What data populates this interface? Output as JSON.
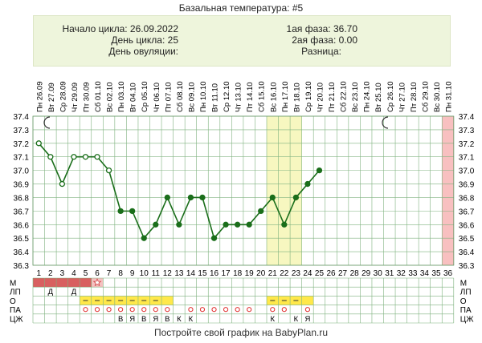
{
  "header": {
    "title": "Базальная температура: #5",
    "cycle_start": "Начало цикла: 26.09.2022",
    "cycle_day": "День цикла: 25",
    "ovulation_day": "День овуляции:",
    "phase1": "1ая фаза: 36.70",
    "phase2": "2ая фаза: 0.00",
    "difference": "Разница:"
  },
  "footer": {
    "text": "Постройте свой график на BabyPlan.ru"
  },
  "colors": {
    "line": "#1a6e1a",
    "grid": "#7fb27f",
    "highlight": "#f7f7c0",
    "end_marker": "#f8c0c0",
    "period_bar": "#d86060",
    "pink_flag": "#f5c0c0",
    "yellow_cell": "#ffe84a"
  },
  "icons": {
    "moon_left": "crescent-moon-icon",
    "moon_right": "crescent-moon-icon",
    "star": "star-icon"
  },
  "chart_data": {
    "type": "line",
    "x": [
      1,
      2,
      3,
      4,
      5,
      6,
      7,
      8,
      9,
      10,
      11,
      12,
      13,
      14,
      15,
      16,
      17,
      18,
      19,
      20,
      21,
      22,
      23,
      24,
      25
    ],
    "y": [
      37.2,
      37.1,
      36.9,
      37.1,
      37.1,
      37.1,
      37.0,
      36.7,
      36.7,
      36.5,
      36.6,
      36.8,
      36.6,
      36.8,
      36.8,
      36.5,
      36.6,
      36.6,
      36.6,
      36.7,
      36.8,
      36.6,
      36.8,
      36.9,
      37.0
    ],
    "hollow_points": [
      1,
      2,
      3,
      4,
      5,
      6,
      7
    ],
    "ylim": [
      36.3,
      37.4
    ],
    "y_ticks": [
      "37.4",
      "37.3",
      "37.2",
      "37.1",
      "37.0",
      "36.9",
      "36.8",
      "36.7",
      "36.6",
      "36.5",
      "36.4",
      "36.3"
    ],
    "x_ticks": [
      "1",
      "2",
      "3",
      "4",
      "5",
      "6",
      "7",
      "8",
      "9",
      "10",
      "11",
      "12",
      "13",
      "14",
      "15",
      "16",
      "17",
      "18",
      "19",
      "20",
      "21",
      "22",
      "23",
      "24",
      "25",
      "26",
      "27",
      "28",
      "29",
      "30",
      "31",
      "32",
      "33",
      "34",
      "35",
      "36"
    ],
    "day_labels": [
      "Пн",
      "Вт",
      "Ср",
      "Чт",
      "Пт",
      "Сб",
      "Вс",
      "Пн",
      "Вт",
      "Ср",
      "Чт",
      "Пт",
      "Сб",
      "Вс",
      "Пн",
      "Вт",
      "Ср",
      "Чт",
      "Пт",
      "Сб",
      "Вс",
      "Пн",
      "Вт",
      "Ср",
      "Чт",
      "Пт",
      "Сб",
      "Вс",
      "Пн",
      "Вт",
      "Ср",
      "Чт",
      "Пт",
      "Сб",
      "Вс",
      "Пн"
    ],
    "date_labels": [
      "26.09",
      "27.09",
      "28.09",
      "29.09",
      "30.09",
      "01.10",
      "02.10",
      "03.10",
      "04.10",
      "05.10",
      "06.10",
      "07.10",
      "08.10",
      "09.10",
      "10.10",
      "11.10",
      "12.10",
      "13.10",
      "14.10",
      "15.10",
      "16.10",
      "17.10",
      "18.10",
      "19.10",
      "20.10",
      "21.10",
      "22.10",
      "23.10",
      "24.10",
      "25.10",
      "26.10",
      "27.10",
      "28.10",
      "29.10",
      "30.10",
      "31.10"
    ],
    "highlight_days": [
      21,
      23
    ],
    "end_day": 36,
    "grid": true,
    "rows": {
      "labels": [
        "М",
        "ЛП",
        "О",
        "ПА",
        "ЦЖ"
      ],
      "period_days": [
        1,
        5
      ],
      "pink_day": 6,
      "star_day": 6,
      "lp": {
        "2": "Д",
        "4": "Д"
      },
      "o_yellow_days": [
        5,
        6,
        7,
        8,
        9,
        10,
        11,
        12,
        21,
        22,
        23,
        24
      ],
      "o_dash_days": [
        5,
        6,
        7,
        8,
        9,
        10,
        11,
        21,
        22,
        23
      ],
      "pa_circle_days": [
        5,
        6,
        7,
        8,
        9,
        10,
        11,
        12,
        14,
        15,
        16,
        17,
        18,
        19,
        21,
        22,
        24
      ],
      "czh": {
        "8": "В",
        "9": "Я",
        "10": "В",
        "11": "Я",
        "12": "В",
        "13": "К",
        "14": "К",
        "21": "К",
        "23": "К",
        "24": "Я"
      }
    }
  }
}
